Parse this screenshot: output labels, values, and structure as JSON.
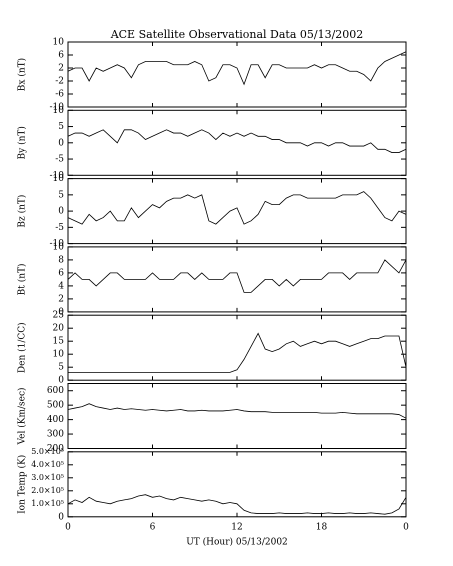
{
  "chart_data": {
    "type": "line",
    "title": "ACE Satellite Observational Data  05/13/2002",
    "xlabel": "UT (Hour)  05/13/2002",
    "color": "#000000",
    "x": [
      0,
      0.5,
      1,
      1.5,
      2,
      2.5,
      3,
      3.5,
      4,
      4.5,
      5,
      5.5,
      6,
      6.5,
      7,
      7.5,
      8,
      8.5,
      9,
      9.5,
      10,
      10.5,
      11,
      11.5,
      12,
      12.5,
      13,
      13.5,
      14,
      14.5,
      15,
      15.5,
      16,
      16.5,
      17,
      17.5,
      18,
      18.5,
      19,
      19.5,
      20,
      20.5,
      21,
      21.5,
      22,
      22.5,
      23,
      23.5,
      24
    ],
    "xlim": [
      0,
      24
    ],
    "xticks": [
      0,
      6,
      12,
      18,
      {
        "value": 24,
        "label": "0"
      }
    ],
    "panels": [
      {
        "ylabel": "Bx (nT)",
        "ylim": [
          -10,
          10
        ],
        "yticks": [
          -10,
          -6,
          -2,
          2,
          6,
          10
        ],
        "values": [
          1,
          2,
          2,
          -2,
          2,
          1,
          2,
          3,
          2,
          -1,
          3,
          4,
          4,
          4,
          4,
          3,
          3,
          3,
          4,
          3,
          -2,
          -1,
          3,
          3,
          2,
          -3,
          3,
          3,
          -1,
          3,
          3,
          2,
          2,
          2,
          2,
          3,
          2,
          3,
          3,
          2,
          1,
          1,
          0,
          -2,
          2,
          4,
          5,
          6,
          7
        ]
      },
      {
        "ylabel": "By (nT)",
        "ylim": [
          -10,
          10
        ],
        "yticks": [
          -10,
          -5,
          0,
          5,
          10
        ],
        "values": [
          2,
          3,
          3,
          2,
          3,
          4,
          2,
          0,
          4,
          4,
          3,
          1,
          2,
          3,
          4,
          3,
          3,
          2,
          3,
          4,
          3,
          1,
          3,
          2,
          3,
          2,
          3,
          2,
          2,
          1,
          1,
          0,
          0,
          0,
          -1,
          0,
          0,
          -1,
          0,
          0,
          -1,
          -1,
          -1,
          0,
          -2,
          -2,
          -3,
          -3,
          -2
        ]
      },
      {
        "ylabel": "Bz (nT)",
        "ylim": [
          -10,
          10
        ],
        "yticks": [
          -10,
          -5,
          0,
          5,
          10
        ],
        "values": [
          -2,
          -3,
          -4,
          -1,
          -3,
          -2,
          0,
          -3,
          -3,
          1,
          -2,
          0,
          2,
          1,
          3,
          4,
          4,
          5,
          4,
          5,
          -3,
          -4,
          -2,
          0,
          1,
          -4,
          -3,
          -1,
          3,
          2,
          2,
          4,
          5,
          5,
          4,
          4,
          4,
          4,
          4,
          5,
          5,
          5,
          6,
          4,
          1,
          -2,
          -3,
          0,
          -1
        ]
      },
      {
        "ylabel": "Bt (nT)",
        "ylim": [
          0,
          10
        ],
        "yticks": [
          0,
          2,
          4,
          6,
          8,
          10
        ],
        "values": [
          5,
          6,
          5,
          5,
          4,
          5,
          6,
          6,
          5,
          5,
          5,
          5,
          6,
          5,
          5,
          5,
          6,
          6,
          5,
          6,
          5,
          5,
          5,
          6,
          6,
          3,
          3,
          4,
          5,
          5,
          4,
          5,
          4,
          5,
          5,
          5,
          5,
          6,
          6,
          6,
          5,
          6,
          6,
          6,
          6,
          8,
          7,
          6,
          8
        ]
      },
      {
        "ylabel": "Den (1/CC)",
        "ylim": [
          0,
          25
        ],
        "yticks": [
          0,
          5,
          10,
          15,
          20,
          25
        ],
        "values": [
          3,
          3,
          3,
          3,
          3,
          3,
          3,
          3,
          3,
          3,
          3,
          3,
          3,
          3,
          3,
          3,
          3,
          3,
          3,
          3,
          3,
          3,
          3,
          3,
          4,
          8,
          13,
          18,
          12,
          11,
          12,
          14,
          15,
          13,
          14,
          15,
          14,
          15,
          15,
          14,
          13,
          14,
          15,
          16,
          16,
          17,
          17,
          17,
          5
        ]
      },
      {
        "ylabel": "Vel (Km/sec)",
        "ylim": [
          200,
          650
        ],
        "yticks": [
          200,
          300,
          400,
          500,
          600
        ],
        "values": [
          470,
          480,
          490,
          510,
          490,
          480,
          470,
          480,
          470,
          475,
          470,
          465,
          470,
          465,
          460,
          465,
          470,
          460,
          460,
          465,
          460,
          460,
          460,
          465,
          470,
          460,
          455,
          455,
          455,
          450,
          450,
          450,
          450,
          450,
          450,
          450,
          445,
          445,
          445,
          450,
          445,
          440,
          440,
          440,
          440,
          440,
          440,
          435,
          410
        ]
      },
      {
        "ylabel": "Ion Temp (K)",
        "ylim": [
          0,
          500000
        ],
        "yticks": [
          0,
          {
            "value": 100000,
            "label": "1.0×10⁵"
          },
          {
            "value": 200000,
            "label": "2.0×10⁵"
          },
          {
            "value": 300000,
            "label": "3.0×10⁵"
          },
          {
            "value": 400000,
            "label": "4.0×10⁵"
          },
          {
            "value": 500000,
            "label": "5.0×10⁵"
          }
        ],
        "values": [
          100000,
          130000,
          110000,
          150000,
          120000,
          110000,
          100000,
          120000,
          130000,
          140000,
          160000,
          170000,
          150000,
          160000,
          140000,
          130000,
          150000,
          140000,
          130000,
          120000,
          130000,
          120000,
          100000,
          110000,
          100000,
          50000,
          30000,
          25000,
          25000,
          25000,
          30000,
          25000,
          25000,
          25000,
          30000,
          25000,
          25000,
          30000,
          25000,
          25000,
          30000,
          25000,
          25000,
          30000,
          25000,
          20000,
          30000,
          60000,
          150000
        ]
      }
    ]
  }
}
